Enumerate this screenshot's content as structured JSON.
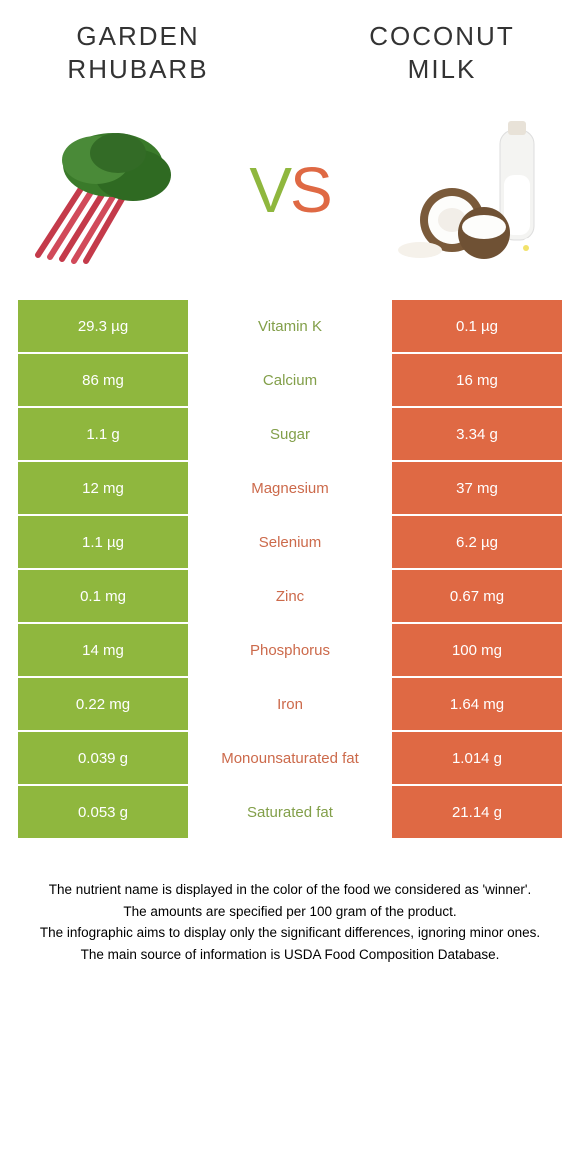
{
  "colors": {
    "left": "#8fb73e",
    "right": "#df6944",
    "leftText": "#829f49",
    "rightText": "#cc6a4b",
    "bg": "#ffffff"
  },
  "leftFood": {
    "title": "GARDEN\nRHUBARB"
  },
  "rightFood": {
    "title": "COCONUT\nMILK"
  },
  "vs": {
    "v": "V",
    "s": "S"
  },
  "rows": [
    {
      "left": "29.3 µg",
      "label": "Vitamin K",
      "right": "0.1 µg",
      "winner": "left"
    },
    {
      "left": "86 mg",
      "label": "Calcium",
      "right": "16 mg",
      "winner": "left"
    },
    {
      "left": "1.1 g",
      "label": "Sugar",
      "right": "3.34 g",
      "winner": "left"
    },
    {
      "left": "12 mg",
      "label": "Magnesium",
      "right": "37 mg",
      "winner": "right"
    },
    {
      "left": "1.1 µg",
      "label": "Selenium",
      "right": "6.2 µg",
      "winner": "right"
    },
    {
      "left": "0.1 mg",
      "label": "Zinc",
      "right": "0.67 mg",
      "winner": "right"
    },
    {
      "left": "14 mg",
      "label": "Phosphorus",
      "right": "100 mg",
      "winner": "right"
    },
    {
      "left": "0.22 mg",
      "label": "Iron",
      "right": "1.64 mg",
      "winner": "right"
    },
    {
      "left": "0.039 g",
      "label": "Monounsaturated fat",
      "right": "1.014 g",
      "winner": "right"
    },
    {
      "left": "0.053 g",
      "label": "Saturated fat",
      "right": "21.14 g",
      "winner": "left"
    }
  ],
  "footer": [
    "The nutrient name is displayed in the color of the food we considered as 'winner'.",
    "The amounts are specified per 100 gram of the product.",
    "The infographic aims to display only the significant differences, ignoring minor ones.",
    "The main source of information is USDA Food Composition Database."
  ]
}
